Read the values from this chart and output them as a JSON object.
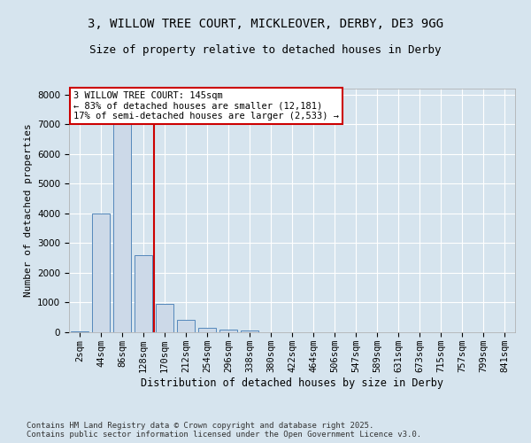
{
  "title1": "3, WILLOW TREE COURT, MICKLEOVER, DERBY, DE3 9GG",
  "title2": "Size of property relative to detached houses in Derby",
  "xlabel": "Distribution of detached houses by size in Derby",
  "ylabel": "Number of detached properties",
  "categories": [
    "2sqm",
    "44sqm",
    "86sqm",
    "128sqm",
    "170sqm",
    "212sqm",
    "254sqm",
    "296sqm",
    "338sqm",
    "380sqm",
    "422sqm",
    "464sqm",
    "506sqm",
    "547sqm",
    "589sqm",
    "631sqm",
    "673sqm",
    "715sqm",
    "757sqm",
    "799sqm",
    "841sqm"
  ],
  "values": [
    20,
    4000,
    7500,
    2600,
    950,
    420,
    150,
    100,
    50,
    0,
    0,
    0,
    0,
    0,
    0,
    0,
    0,
    0,
    0,
    0,
    0
  ],
  "bar_color": "#ccd9e8",
  "bar_edge_color": "#5588bb",
  "vline_color": "#cc0000",
  "annotation_text": "3 WILLOW TREE COURT: 145sqm\n← 83% of detached houses are smaller (12,181)\n17% of semi-detached houses are larger (2,533) →",
  "annotation_box_color": "#cc0000",
  "bg_color": "#d6e4ee",
  "plot_bg_color": "#d6e4ee",
  "ylim": [
    0,
    8200
  ],
  "yticks": [
    0,
    1000,
    2000,
    3000,
    4000,
    5000,
    6000,
    7000,
    8000
  ],
  "footnote": "Contains HM Land Registry data © Crown copyright and database right 2025.\nContains public sector information licensed under the Open Government Licence v3.0.",
  "title1_fontsize": 10,
  "title2_fontsize": 9,
  "xlabel_fontsize": 8.5,
  "ylabel_fontsize": 8,
  "tick_fontsize": 7.5,
  "annotation_fontsize": 7.5,
  "footnote_fontsize": 6.5
}
